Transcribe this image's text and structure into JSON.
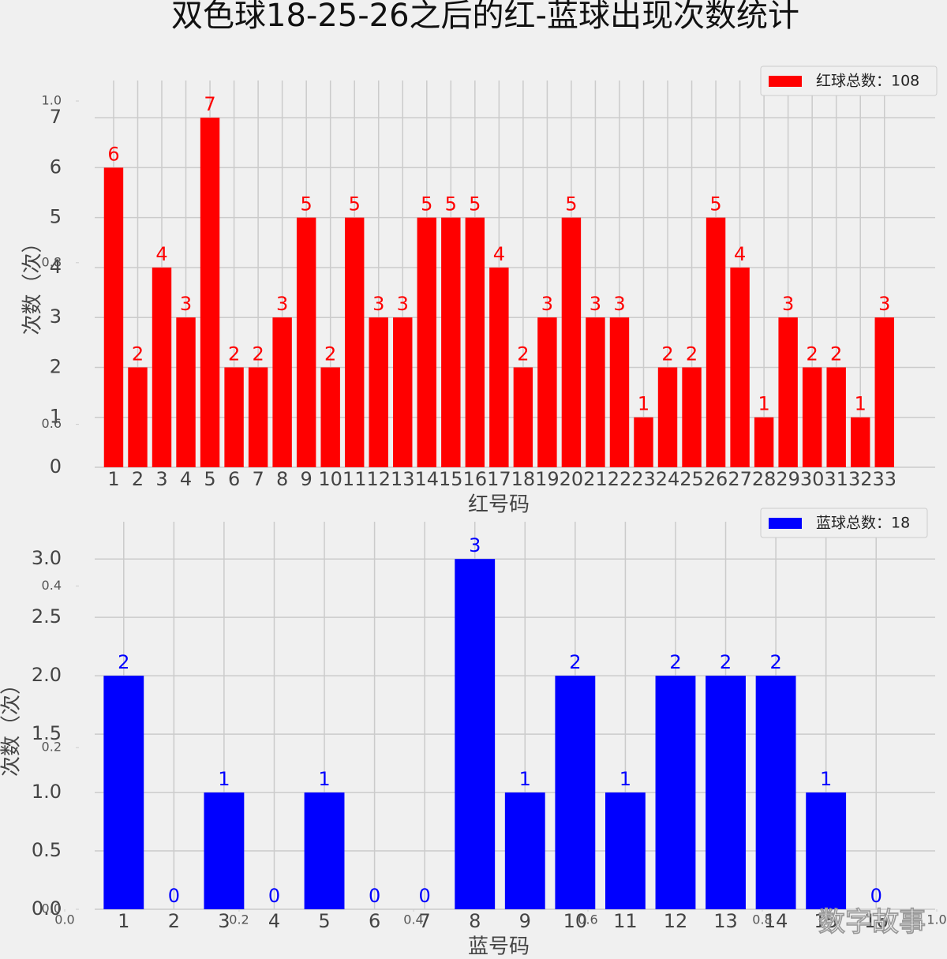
{
  "title": "双色球18-25-26之后的红-蓝球出现次数统计",
  "watermark": "数字故事",
  "chart_data": [
    {
      "type": "bar",
      "xlabel": "红号码",
      "ylabel": "次数（次）",
      "categories": [
        "1",
        "2",
        "3",
        "4",
        "5",
        "6",
        "7",
        "8",
        "9",
        "10",
        "11",
        "12",
        "13",
        "14",
        "15",
        "16",
        "17",
        "18",
        "19",
        "20",
        "21",
        "22",
        "23",
        "24",
        "25",
        "26",
        "27",
        "28",
        "29",
        "30",
        "31",
        "32",
        "33"
      ],
      "series": [
        {
          "name": "红球总数：108",
          "color": "#ff0000",
          "values": [
            6,
            2,
            4,
            3,
            7,
            2,
            2,
            3,
            5,
            2,
            5,
            3,
            3,
            5,
            5,
            5,
            4,
            2,
            3,
            5,
            3,
            3,
            1,
            2,
            2,
            5,
            4,
            1,
            3,
            2,
            2,
            1,
            3
          ]
        }
      ],
      "ylim": [
        0,
        7.35
      ],
      "yticks": [
        0,
        1,
        2,
        3,
        4,
        5,
        6,
        7
      ],
      "grid": true,
      "legend": "upper right"
    },
    {
      "type": "bar",
      "xlabel": "蓝号码",
      "ylabel": "次数（次）",
      "categories": [
        "1",
        "2",
        "3",
        "4",
        "5",
        "6",
        "7",
        "8",
        "9",
        "10",
        "11",
        "12",
        "13",
        "14",
        "15",
        "16"
      ],
      "series": [
        {
          "name": "蓝球总数：18",
          "color": "#0000ff",
          "values": [
            2,
            0,
            1,
            0,
            1,
            0,
            0,
            3,
            1,
            2,
            1,
            2,
            2,
            2,
            1,
            0
          ]
        }
      ],
      "ylim": [
        0,
        3.15
      ],
      "yticks": [
        {
          "value": 0,
          "label": "0.0"
        },
        0.5,
        {
          "value": 1,
          "label": "1.0"
        },
        1.5,
        {
          "value": 2,
          "label": "2.0"
        },
        2.5,
        {
          "value": 3,
          "label": "3.0"
        }
      ],
      "grid": true,
      "legend": "upper right"
    },
    {
      "type": "axes",
      "xlim": [
        0,
        1
      ],
      "ylim": [
        0,
        1
      ],
      "xticks": [
        {
          "value": 0,
          "label": "0.0"
        },
        0.2,
        0.4,
        0.6,
        0.8,
        {
          "value": 1,
          "label": "1.0"
        }
      ],
      "yticks": [
        {
          "value": 0,
          "label": "0.0"
        },
        0.2,
        0.4,
        0.6,
        0.8,
        {
          "value": 1,
          "label": "1.0"
        }
      ]
    }
  ]
}
